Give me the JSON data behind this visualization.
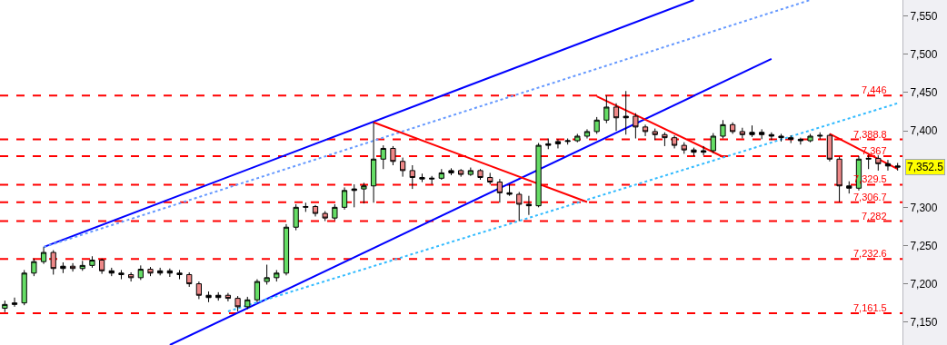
{
  "chart_data": {
    "type": "candlestick",
    "tick_labels": "y",
    "categories": [
      null,
      null,
      null,
      null,
      null,
      null,
      null,
      null,
      null,
      null,
      null,
      null,
      null,
      null,
      null,
      null,
      null,
      null,
      null,
      null,
      null,
      null,
      null,
      null,
      null,
      null,
      null,
      null,
      null,
      null,
      null,
      null,
      null,
      null,
      null,
      null,
      null,
      null,
      null,
      null,
      null,
      null,
      null,
      null,
      null,
      null,
      null,
      null,
      null,
      null,
      null,
      null,
      null,
      null,
      null,
      null,
      null,
      null,
      null,
      null,
      null,
      null,
      null,
      null,
      null,
      null,
      null,
      null,
      null,
      null,
      null,
      null,
      null,
      null,
      null,
      null,
      null,
      null,
      null,
      null,
      null,
      null,
      null,
      null,
      null,
      null,
      null,
      null,
      null,
      null,
      null,
      null,
      null
    ],
    "ohlc": [
      [
        7168,
        7178,
        7163,
        7173
      ],
      [
        7173,
        7182,
        7170,
        7175
      ],
      [
        7175,
        7218,
        7172,
        7214
      ],
      [
        7214,
        7233,
        7210,
        7229
      ],
      [
        7229,
        7248,
        7226,
        7241
      ],
      [
        7241,
        7244,
        7212,
        7220
      ],
      [
        7220,
        7228,
        7214,
        7223
      ],
      [
        7223,
        7227,
        7216,
        7220
      ],
      [
        7220,
        7230,
        7217,
        7224
      ],
      [
        7224,
        7236,
        7221,
        7231
      ],
      [
        7231,
        7233,
        7213,
        7217
      ],
      [
        7217,
        7221,
        7210,
        7214
      ],
      [
        7214,
        7218,
        7206,
        7212
      ],
      [
        7212,
        7215,
        7203,
        7208
      ],
      [
        7208,
        7224,
        7205,
        7219
      ],
      [
        7219,
        7222,
        7210,
        7214
      ],
      [
        7214,
        7221,
        7211,
        7217
      ],
      [
        7217,
        7220,
        7209,
        7214
      ],
      [
        7214,
        7218,
        7206,
        7212
      ],
      [
        7212,
        7215,
        7196,
        7200
      ],
      [
        7200,
        7203,
        7180,
        7185
      ],
      [
        7185,
        7190,
        7176,
        7182
      ],
      [
        7182,
        7189,
        7178,
        7185
      ],
      [
        7185,
        7188,
        7177,
        7181
      ],
      [
        7181,
        7184,
        7164,
        7170
      ],
      [
        7170,
        7183,
        7167,
        7179
      ],
      [
        7179,
        7206,
        7176,
        7203
      ],
      [
        7203,
        7225,
        7199,
        7208
      ],
      [
        7208,
        7218,
        7203,
        7214
      ],
      [
        7214,
        7278,
        7211,
        7274
      ],
      [
        7274,
        7304,
        7270,
        7300
      ],
      [
        7300,
        7306,
        7294,
        7301
      ],
      [
        7301,
        7303,
        7288,
        7292
      ],
      [
        7292,
        7295,
        7282,
        7286
      ],
      [
        7286,
        7304,
        7283,
        7300
      ],
      [
        7300,
        7326,
        7297,
        7322
      ],
      [
        7322,
        7330,
        7300,
        7324
      ],
      [
        7324,
        7332,
        7305,
        7328
      ],
      [
        7328,
        7411,
        7306,
        7363
      ],
      [
        7363,
        7381,
        7350,
        7377
      ],
      [
        7377,
        7380,
        7355,
        7360
      ],
      [
        7360,
        7365,
        7340,
        7348
      ],
      [
        7348,
        7355,
        7324,
        7339
      ],
      [
        7339,
        7344,
        7333,
        7337
      ],
      [
        7337,
        7341,
        7330,
        7338
      ],
      [
        7338,
        7350,
        7336,
        7345
      ],
      [
        7345,
        7351,
        7342,
        7348
      ],
      [
        7348,
        7350,
        7340,
        7343
      ],
      [
        7343,
        7352,
        7341,
        7348
      ],
      [
        7348,
        7350,
        7336,
        7339
      ],
      [
        7339,
        7345,
        7330,
        7333
      ],
      [
        7333,
        7337,
        7306,
        7319
      ],
      [
        7319,
        7330,
        7315,
        7317
      ],
      [
        7317,
        7320,
        7282,
        7304
      ],
      [
        7304,
        7315,
        7290,
        7302
      ],
      [
        7302,
        7384,
        7300,
        7381
      ],
      [
        7381,
        7390,
        7376,
        7383
      ],
      [
        7383,
        7389,
        7377,
        7386
      ],
      [
        7386,
        7390,
        7382,
        7387
      ],
      [
        7387,
        7396,
        7385,
        7393
      ],
      [
        7393,
        7402,
        7390,
        7399
      ],
      [
        7399,
        7418,
        7396,
        7414
      ],
      [
        7414,
        7446,
        7410,
        7431
      ],
      [
        7431,
        7436,
        7400,
        7417
      ],
      [
        7417,
        7452,
        7395,
        7419
      ],
      [
        7419,
        7423,
        7390,
        7405
      ],
      [
        7405,
        7408,
        7393,
        7399
      ],
      [
        7399,
        7403,
        7388,
        7395
      ],
      [
        7395,
        7398,
        7380,
        7391
      ],
      [
        7391,
        7394,
        7377,
        7381
      ],
      [
        7381,
        7385,
        7370,
        7375
      ],
      [
        7375,
        7378,
        7367,
        7372
      ],
      [
        7372,
        7380,
        7368,
        7374
      ],
      [
        7374,
        7397,
        7371,
        7393
      ],
      [
        7393,
        7414,
        7390,
        7408
      ],
      [
        7408,
        7411,
        7396,
        7399
      ],
      [
        7399,
        7404,
        7390,
        7395
      ],
      [
        7395,
        7407,
        7392,
        7398
      ],
      [
        7398,
        7402,
        7389,
        7395
      ],
      [
        7395,
        7398,
        7388,
        7393
      ],
      [
        7393,
        7396,
        7386,
        7391
      ],
      [
        7391,
        7394,
        7384,
        7389
      ],
      [
        7389,
        7391,
        7382,
        7387
      ],
      [
        7387,
        7396,
        7385,
        7393
      ],
      [
        7393,
        7398,
        7389,
        7394
      ],
      [
        7394,
        7396,
        7360,
        7363
      ],
      [
        7363,
        7366,
        7307,
        7328
      ],
      [
        7328,
        7334,
        7318,
        7325
      ],
      [
        7325,
        7367,
        7322,
        7363
      ],
      [
        7363,
        7370,
        7350,
        7364
      ],
      [
        7364,
        7368,
        7348,
        7357
      ],
      [
        7357,
        7362,
        7348,
        7354
      ],
      [
        7354,
        7358,
        7348,
        7352.5
      ]
    ],
    "colors": [
      "#66dd66",
      "#000000",
      "#66dd66",
      "#66dd66",
      "#66dd66",
      "#ee8888",
      "#000000",
      "#ee8888",
      "#66dd66",
      "#66dd66",
      "#ee8888",
      "#000000",
      "#000000",
      "#ee8888",
      "#66dd66",
      "#ee8888",
      "#000000",
      "#000000",
      "#000000",
      "#ee8888",
      "#ee8888",
      "#000000",
      "#000000",
      "#ee8888",
      "#ee8888",
      "#66dd66",
      "#66dd66",
      "#66dd66",
      "#66dd66",
      "#66dd66",
      "#66dd66",
      "#000000",
      "#ee8888",
      "#ee8888",
      "#66dd66",
      "#66dd66",
      "#000000",
      "#66dd66",
      "#66dd66",
      "#66dd66",
      "#ee8888",
      "#ee8888",
      "#ee8888",
      "#000000",
      "#000000",
      "#66dd66",
      "#000000",
      "#ee8888",
      "#66dd66",
      "#ee8888",
      "#ee8888",
      "#ee8888",
      "#000000",
      "#ee8888",
      "#000000",
      "#66dd66",
      "#000000",
      "#000000",
      "#000000",
      "#66dd66",
      "#66dd66",
      "#66dd66",
      "#66dd66",
      "#ee8888",
      "#000000",
      "#ee8888",
      "#ee8888",
      "#ee8888",
      "#ee8888",
      "#ee8888",
      "#ee8888",
      "#000000",
      "#000000",
      "#66dd66",
      "#66dd66",
      "#ee8888",
      "#ee8888",
      "#000000",
      "#000000",
      "#000000",
      "#000000",
      "#000000",
      "#000000",
      "#66dd66",
      "#000000",
      "#ee8888",
      "#ee8888",
      "#000000",
      "#66dd66",
      "#000000",
      "#ee8888",
      "#000000",
      "#000000"
    ],
    "series": [
      {
        "type": "line",
        "color": "#0000ff",
        "line_style": "solid",
        "values": [
          null,
          null,
          null,
          null,
          7248,
          null,
          null,
          null,
          null,
          null,
          null,
          null,
          null,
          null,
          null,
          null,
          null,
          null,
          null,
          null,
          null,
          null,
          null,
          null,
          null,
          null,
          null,
          null,
          null,
          null,
          null,
          null,
          null,
          null,
          null,
          null,
          null,
          null,
          null,
          null,
          null,
          null,
          null,
          null,
          null,
          null,
          null,
          null,
          null,
          null,
          null,
          null,
          null,
          null,
          null,
          null,
          null,
          null,
          null,
          null,
          null,
          null,
          null,
          null,
          null,
          null,
          null,
          null,
          null,
          null,
          null,
          7571,
          null,
          null,
          null,
          null,
          null,
          null,
          null,
          null,
          null,
          null,
          null,
          null,
          null,
          null,
          null,
          null,
          null,
          null,
          null,
          null,
          null
        ]
      },
      {
        "type": "line",
        "color": "#6699ff",
        "line_style": "dotted",
        "values": [
          null,
          null,
          null,
          null,
          7248,
          null,
          null,
          null,
          null,
          null,
          null,
          null,
          null,
          null,
          null,
          null,
          null,
          null,
          null,
          null,
          null,
          null,
          null,
          null,
          null,
          null,
          null,
          null,
          null,
          null,
          null,
          null,
          null,
          null,
          null,
          null,
          null,
          null,
          null,
          null,
          null,
          null,
          null,
          null,
          null,
          null,
          null,
          null,
          null,
          null,
          null,
          null,
          null,
          null,
          null,
          null,
          null,
          null,
          null,
          null,
          null,
          null,
          null,
          null,
          null,
          null,
          null,
          null,
          null,
          null,
          null,
          null,
          null,
          null,
          null,
          null,
          null,
          null,
          null,
          null,
          null,
          null,
          null,
          7571,
          null,
          null,
          null,
          null,
          null,
          null,
          null,
          null,
          null
        ]
      },
      {
        "type": "line",
        "color": "#0000ff",
        "line_style": "solid",
        "values": [
          null,
          null,
          null,
          null,
          null,
          null,
          null,
          null,
          null,
          null,
          null,
          null,
          null,
          null,
          null,
          null,
          null,
          7120,
          null,
          null,
          null,
          null,
          null,
          null,
          null,
          null,
          null,
          null,
          null,
          null,
          null,
          null,
          null,
          null,
          null,
          null,
          null,
          null,
          null,
          null,
          null,
          null,
          null,
          null,
          null,
          null,
          null,
          null,
          null,
          null,
          null,
          null,
          null,
          null,
          null,
          null,
          null,
          null,
          null,
          null,
          null,
          null,
          null,
          null,
          null,
          null,
          null,
          null,
          null,
          null,
          null,
          null,
          null,
          null,
          null,
          null,
          null,
          null,
          null,
          7494,
          null,
          null,
          null,
          null,
          null,
          null,
          null,
          null,
          null,
          null,
          null,
          null,
          null
        ]
      },
      {
        "type": "line",
        "color": "#33bbff",
        "line_style": "dotted",
        "values": [
          null,
          null,
          null,
          null,
          null,
          null,
          null,
          null,
          null,
          null,
          null,
          null,
          null,
          null,
          null,
          null,
          null,
          null,
          null,
          null,
          null,
          null,
          null,
          7164,
          null,
          null,
          null,
          null,
          null,
          null,
          null,
          null,
          null,
          null,
          null,
          null,
          null,
          null,
          null,
          null,
          null,
          null,
          null,
          null,
          null,
          null,
          null,
          null,
          null,
          null,
          null,
          null,
          null,
          null,
          null,
          null,
          null,
          null,
          null,
          null,
          null,
          null,
          null,
          null,
          null,
          null,
          null,
          null,
          null,
          null,
          null,
          null,
          null,
          null,
          null,
          null,
          null,
          null,
          null,
          null,
          null,
          null,
          null,
          null,
          null,
          null,
          null,
          null,
          null,
          null,
          null,
          null,
          7436
        ]
      },
      {
        "type": "line",
        "color": "#ff0000",
        "line_style": "solid",
        "values": [
          null,
          null,
          null,
          null,
          null,
          null,
          null,
          null,
          null,
          null,
          null,
          null,
          null,
          null,
          null,
          null,
          null,
          null,
          null,
          null,
          null,
          null,
          null,
          null,
          null,
          null,
          null,
          null,
          null,
          null,
          null,
          null,
          null,
          null,
          null,
          null,
          null,
          null,
          7411,
          null,
          null,
          null,
          null,
          null,
          null,
          null,
          null,
          null,
          null,
          null,
          null,
          null,
          null,
          null,
          null,
          null,
          null,
          null,
          null,
          null,
          7307,
          null,
          null,
          null,
          null,
          null,
          null,
          null,
          null,
          null,
          null,
          null,
          null,
          null,
          null,
          null,
          null,
          null,
          null,
          null,
          null,
          null,
          null,
          null,
          null,
          null,
          null,
          null,
          null,
          null,
          null,
          null,
          null
        ]
      },
      {
        "type": "line",
        "color": "#ff0000",
        "line_style": "solid",
        "values": [
          null,
          null,
          null,
          null,
          null,
          null,
          null,
          null,
          null,
          null,
          null,
          null,
          null,
          null,
          null,
          null,
          null,
          null,
          null,
          null,
          null,
          null,
          null,
          null,
          null,
          null,
          null,
          null,
          null,
          null,
          null,
          null,
          null,
          null,
          null,
          null,
          null,
          null,
          null,
          null,
          null,
          null,
          null,
          null,
          null,
          null,
          null,
          null,
          null,
          null,
          null,
          null,
          null,
          null,
          null,
          null,
          null,
          null,
          null,
          null,
          null,
          7445,
          null,
          null,
          null,
          null,
          null,
          null,
          null,
          null,
          null,
          null,
          null,
          null,
          7366,
          null,
          null,
          null,
          null,
          null,
          null,
          null,
          null,
          null,
          null,
          null,
          null,
          null,
          null,
          null,
          null,
          null,
          null
        ]
      },
      {
        "type": "line",
        "color": "#ff0000",
        "line_style": "solid",
        "values": [
          null,
          null,
          null,
          null,
          null,
          null,
          null,
          null,
          null,
          null,
          null,
          null,
          null,
          null,
          null,
          null,
          null,
          null,
          null,
          null,
          null,
          null,
          null,
          null,
          null,
          null,
          null,
          null,
          null,
          null,
          null,
          null,
          null,
          null,
          null,
          null,
          null,
          null,
          null,
          null,
          null,
          null,
          null,
          null,
          null,
          null,
          null,
          null,
          null,
          null,
          null,
          null,
          null,
          null,
          null,
          null,
          null,
          null,
          null,
          null,
          null,
          null,
          null,
          null,
          null,
          null,
          null,
          null,
          null,
          null,
          null,
          null,
          null,
          null,
          null,
          null,
          null,
          null,
          null,
          null,
          null,
          null,
          null,
          null,
          null,
          7396,
          null,
          null,
          null,
          null,
          null,
          null,
          7350
        ]
      }
    ],
    "ref_lines": [
      {
        "axis": "y",
        "value": 7446,
        "label": "7,446",
        "color": "#ff0000",
        "line_style": "dashed"
      },
      {
        "axis": "y",
        "value": 7388.8,
        "label": "7,388.8",
        "color": "#ff0000",
        "line_style": "dashed"
      },
      {
        "axis": "y",
        "value": 7367,
        "label": "7,367",
        "color": "#ff0000",
        "line_style": "dashed"
      },
      {
        "axis": "y",
        "value": 7329.5,
        "label": "7,329.5",
        "color": "#ff0000",
        "line_style": "dashed"
      },
      {
        "axis": "y",
        "value": 7306.7,
        "label": "7,306.7",
        "color": "#ff0000",
        "line_style": "dashed"
      },
      {
        "axis": "y",
        "value": 7282,
        "label": "7,282",
        "color": "#ff0000",
        "line_style": "dashed"
      },
      {
        "axis": "y",
        "value": 7232.6,
        "label": "7,232.6",
        "color": "#ff0000",
        "line_style": "dashed"
      },
      {
        "axis": "y",
        "value": 7161.5,
        "label": "7,161.5",
        "color": "#ff0000",
        "line_style": "dashed"
      }
    ],
    "annotations": [
      "7,352.5"
    ],
    "ylim": [
      7120,
      7571
    ],
    "yticks": [
      {
        "value": 7150,
        "label": "7,150"
      },
      {
        "value": 7200,
        "label": "7,200"
      },
      {
        "value": 7250,
        "label": "7,250"
      },
      {
        "value": 7300,
        "label": "7,300"
      },
      {
        "value": 7400,
        "label": "7,400"
      },
      {
        "value": 7450,
        "label": "7,450"
      },
      {
        "value": 7500,
        "label": "7,500"
      },
      {
        "value": 7550,
        "label": "7,550"
      }
    ]
  }
}
